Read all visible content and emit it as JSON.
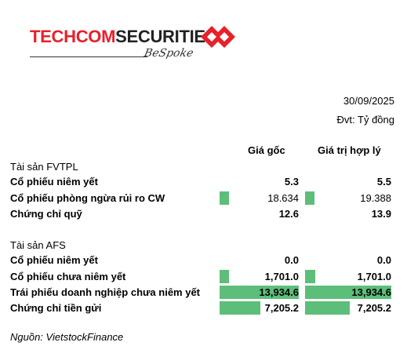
{
  "brand": {
    "name_red": "TECHCOM",
    "name_dark": "SECURITIES",
    "tagline": "BeSpoke",
    "mark_color": "#e8202a"
  },
  "header": {
    "date": "30/09/2025",
    "unit": "Đvt: Tỷ đồng"
  },
  "columns": {
    "cost": "Giá gốc",
    "fair": "Giá trị hợp lý"
  },
  "sections": [
    {
      "title": "Tài sản FVTPL",
      "rows": [
        {
          "label": "Cổ phiếu niêm yết",
          "cost": "5.3",
          "fair": "5.5",
          "cost_num": 5.3,
          "fair_num": 5.5,
          "bold": true
        },
        {
          "label": "Cổ phiếu phòng ngừa rủi ro CW",
          "cost": "18.634",
          "fair": "19.388",
          "cost_num": 18.634,
          "fair_num": 19.388,
          "bold": false
        },
        {
          "label": "Chứng chỉ quỹ",
          "cost": "12.6",
          "fair": "13.9",
          "cost_num": 12.6,
          "fair_num": 13.9,
          "bold": true
        }
      ]
    },
    {
      "title": "Tài sản AFS",
      "rows": [
        {
          "label": "Cổ phiếu niêm yết",
          "cost": "0.0",
          "fair": "0.0",
          "cost_num": 0.0,
          "fair_num": 0.0,
          "bold": true
        },
        {
          "label": "Cổ phiếu chưa niêm yết",
          "cost": "1,701.0",
          "fair": "1,701.0",
          "cost_num": 1701.0,
          "fair_num": 1701.0,
          "bold": true
        },
        {
          "label": "Trái phiếu doanh nghiệp chưa niêm yết",
          "cost": "13,934.6",
          "fair": "13,934.6",
          "cost_num": 13934.6,
          "fair_num": 13934.6,
          "bold": true
        },
        {
          "label": "Chứng chỉ tiền gửi",
          "cost": "7,205.2",
          "fair": "7,205.2",
          "cost_num": 7205.2,
          "fair_num": 7205.2,
          "bold": true
        }
      ]
    }
  ],
  "bar_color": "#5dbe7a",
  "source": "Nguồn: VietstockFinance"
}
